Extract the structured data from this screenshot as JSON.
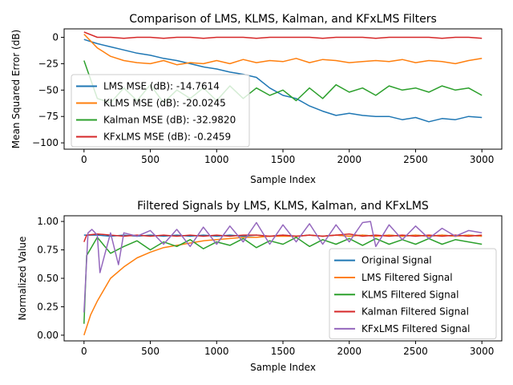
{
  "colors": {
    "blue": "#1f77b4",
    "orange": "#ff7f0e",
    "green": "#2ca02c",
    "red": "#d62728",
    "purple": "#9467bd"
  },
  "chart_data": [
    {
      "type": "line",
      "title": "Comparison of LMS, KLMS, Kalman, and KFxLMS Filters",
      "xlabel": "Sample Index",
      "ylabel": "Mean Squared Error (dB)",
      "xlim": [
        -150,
        3150
      ],
      "ylim": [
        -106,
        8
      ],
      "xticks": [
        0,
        500,
        1000,
        1500,
        2000,
        2500,
        3000
      ],
      "xtick_labels": [
        "0",
        "500",
        "1000",
        "1500",
        "2000",
        "2500",
        "3000"
      ],
      "yticks": [
        0,
        -25,
        -50,
        -75,
        -100
      ],
      "ytick_labels": [
        "0",
        "−25",
        "−50",
        "−75",
        "−100"
      ],
      "legend_position": "center-left",
      "grid": false,
      "series": [
        {
          "name": "LMS MSE (dB): -14.7614",
          "color_key": "blue",
          "x": [
            0,
            100,
            200,
            300,
            400,
            500,
            600,
            700,
            800,
            900,
            1000,
            1100,
            1200,
            1300,
            1400,
            1500,
            1600,
            1700,
            1800,
            1900,
            2000,
            2100,
            2200,
            2300,
            2400,
            2500,
            2600,
            2700,
            2800,
            2900,
            3000
          ],
          "values": [
            -2,
            -6,
            -9,
            -12,
            -15,
            -17,
            -20,
            -22,
            -25,
            -28,
            -30,
            -33,
            -35,
            -38,
            -48,
            -55,
            -58,
            -65,
            -70,
            -74,
            -72,
            -74,
            -75,
            -75,
            -78,
            -76,
            -80,
            -77,
            -78,
            -75,
            -76
          ]
        },
        {
          "name": "KLMS MSE (dB): -20.0245",
          "color_key": "orange",
          "x": [
            0,
            100,
            200,
            300,
            400,
            500,
            600,
            700,
            800,
            900,
            1000,
            1100,
            1200,
            1300,
            1400,
            1500,
            1600,
            1700,
            1800,
            1900,
            2000,
            2100,
            2200,
            2300,
            2400,
            2500,
            2600,
            2700,
            2800,
            2900,
            3000
          ],
          "values": [
            3,
            -10,
            -18,
            -22,
            -24,
            -25,
            -22,
            -26,
            -24,
            -25,
            -22,
            -25,
            -21,
            -24,
            -22,
            -23,
            -20,
            -24,
            -21,
            -22,
            -24,
            -23,
            -22,
            -23,
            -21,
            -24,
            -22,
            -23,
            -25,
            -22,
            -20
          ]
        },
        {
          "name": "Kalman MSE (dB): -32.9820",
          "color_key": "green",
          "x": [
            0,
            100,
            200,
            300,
            400,
            500,
            600,
            700,
            800,
            900,
            1000,
            1100,
            1200,
            1300,
            1400,
            1500,
            1600,
            1700,
            1800,
            1900,
            2000,
            2100,
            2200,
            2300,
            2400,
            2500,
            2600,
            2700,
            2800,
            2900,
            3000
          ],
          "values": [
            -22,
            -58,
            -62,
            -48,
            -60,
            -45,
            -62,
            -50,
            -58,
            -48,
            -60,
            -46,
            -58,
            -48,
            -55,
            -50,
            -60,
            -48,
            -58,
            -45,
            -52,
            -48,
            -55,
            -46,
            -50,
            -48,
            -52,
            -46,
            -50,
            -48,
            -55
          ]
        },
        {
          "name": "KFxLMS MSE (dB): -0.2459",
          "color_key": "red",
          "x": [
            0,
            100,
            200,
            300,
            400,
            500,
            600,
            700,
            800,
            900,
            1000,
            1100,
            1200,
            1300,
            1400,
            1500,
            1600,
            1700,
            1800,
            1900,
            2000,
            2100,
            2200,
            2300,
            2400,
            2500,
            2600,
            2700,
            2800,
            2900,
            3000
          ],
          "values": [
            5,
            0,
            0,
            -1,
            0,
            0,
            -1,
            0,
            0,
            -1,
            0,
            0,
            0,
            -1,
            0,
            0,
            0,
            0,
            -1,
            0,
            0,
            0,
            -1,
            0,
            0,
            0,
            0,
            -1,
            0,
            0,
            -1
          ]
        }
      ]
    },
    {
      "type": "line",
      "title": "Filtered Signals by LMS, KLMS, Kalman, and KFxLMS",
      "xlabel": "Sample Index",
      "ylabel": "Normalized Value",
      "xlim": [
        -150,
        3150
      ],
      "ylim": [
        -0.05,
        1.05
      ],
      "xticks": [
        0,
        500,
        1000,
        1500,
        2000,
        2500,
        3000
      ],
      "xtick_labels": [
        "0",
        "500",
        "1000",
        "1500",
        "2000",
        "2500",
        "3000"
      ],
      "yticks": [
        0.0,
        0.25,
        0.5,
        0.75,
        1.0
      ],
      "ytick_labels": [
        "0.00",
        "0.25",
        "0.50",
        "0.75",
        "1.00"
      ],
      "legend_position": "lower-right",
      "grid": false,
      "series": [
        {
          "name": "Original Signal",
          "color_key": "blue",
          "x": [
            0,
            100,
            200,
            300,
            400,
            500,
            600,
            700,
            800,
            900,
            1000,
            1100,
            1200,
            1300,
            1400,
            1500,
            1600,
            1700,
            1800,
            1900,
            2000,
            2100,
            2200,
            2300,
            2400,
            2500,
            2600,
            2700,
            2800,
            2900,
            3000
          ],
          "values": [
            0.88,
            0.88,
            0.87,
            0.88,
            0.87,
            0.88,
            0.87,
            0.88,
            0.87,
            0.88,
            0.87,
            0.88,
            0.87,
            0.88,
            0.87,
            0.88,
            0.87,
            0.88,
            0.87,
            0.88,
            0.87,
            0.88,
            0.87,
            0.88,
            0.87,
            0.88,
            0.87,
            0.88,
            0.87,
            0.88,
            0.87
          ]
        },
        {
          "name": "LMS Filtered Signal",
          "color_key": "orange",
          "x": [
            0,
            50,
            100,
            200,
            300,
            400,
            500,
            600,
            700,
            800,
            900,
            1000,
            1100,
            1200,
            1300,
            1400,
            1500,
            1600,
            1700,
            1800,
            1900,
            2000,
            2100,
            2200,
            2300,
            2400,
            2500,
            2600,
            2700,
            2800,
            2900,
            3000
          ],
          "values": [
            0.0,
            0.18,
            0.3,
            0.5,
            0.6,
            0.68,
            0.73,
            0.77,
            0.79,
            0.81,
            0.83,
            0.84,
            0.85,
            0.86,
            0.86,
            0.87,
            0.87,
            0.87,
            0.88,
            0.87,
            0.88,
            0.87,
            0.88,
            0.87,
            0.88,
            0.87,
            0.88,
            0.87,
            0.88,
            0.87,
            0.88,
            0.87
          ]
        },
        {
          "name": "KLMS Filtered Signal",
          "color_key": "green",
          "x": [
            0,
            20,
            100,
            200,
            300,
            400,
            500,
            600,
            700,
            800,
            900,
            1000,
            1100,
            1200,
            1300,
            1400,
            1500,
            1600,
            1700,
            1800,
            1900,
            2000,
            2100,
            2200,
            2300,
            2400,
            2500,
            2600,
            2700,
            2800,
            2900,
            3000
          ],
          "values": [
            0.1,
            0.7,
            0.86,
            0.72,
            0.78,
            0.83,
            0.75,
            0.82,
            0.78,
            0.84,
            0.76,
            0.82,
            0.79,
            0.85,
            0.77,
            0.83,
            0.8,
            0.86,
            0.78,
            0.84,
            0.8,
            0.85,
            0.79,
            0.85,
            0.8,
            0.84,
            0.8,
            0.85,
            0.8,
            0.84,
            0.82,
            0.8
          ]
        },
        {
          "name": "Kalman Filtered Signal",
          "color_key": "red",
          "x": [
            0,
            20,
            100,
            200,
            300,
            400,
            500,
            600,
            700,
            800,
            900,
            1000,
            1100,
            1200,
            1300,
            1400,
            1500,
            1600,
            1700,
            1800,
            1900,
            2000,
            2100,
            2200,
            2300,
            2400,
            2500,
            2600,
            2700,
            2800,
            2900,
            3000
          ],
          "values": [
            0.82,
            0.88,
            0.89,
            0.88,
            0.87,
            0.88,
            0.87,
            0.88,
            0.87,
            0.88,
            0.87,
            0.88,
            0.87,
            0.88,
            0.88,
            0.87,
            0.88,
            0.87,
            0.88,
            0.87,
            0.88,
            0.89,
            0.87,
            0.88,
            0.87,
            0.88,
            0.87,
            0.88,
            0.87,
            0.88,
            0.87,
            0.88
          ]
        },
        {
          "name": "KFxLMS Filtered Signal",
          "color_key": "purple",
          "x": [
            0,
            30,
            60,
            100,
            120,
            200,
            260,
            300,
            400,
            500,
            600,
            700,
            800,
            900,
            1000,
            1100,
            1200,
            1300,
            1400,
            1500,
            1600,
            1700,
            1800,
            1900,
            2000,
            2100,
            2160,
            2200,
            2300,
            2400,
            2500,
            2600,
            2700,
            2800,
            2900,
            3000
          ],
          "values": [
            0.2,
            0.9,
            0.93,
            0.88,
            0.55,
            0.9,
            0.62,
            0.9,
            0.87,
            0.92,
            0.8,
            0.93,
            0.78,
            0.95,
            0.8,
            0.96,
            0.82,
            0.99,
            0.8,
            0.97,
            0.82,
            0.98,
            0.8,
            0.97,
            0.82,
            0.99,
            1.0,
            0.78,
            0.97,
            0.84,
            0.96,
            0.85,
            0.94,
            0.87,
            0.92,
            0.9
          ]
        }
      ]
    }
  ]
}
